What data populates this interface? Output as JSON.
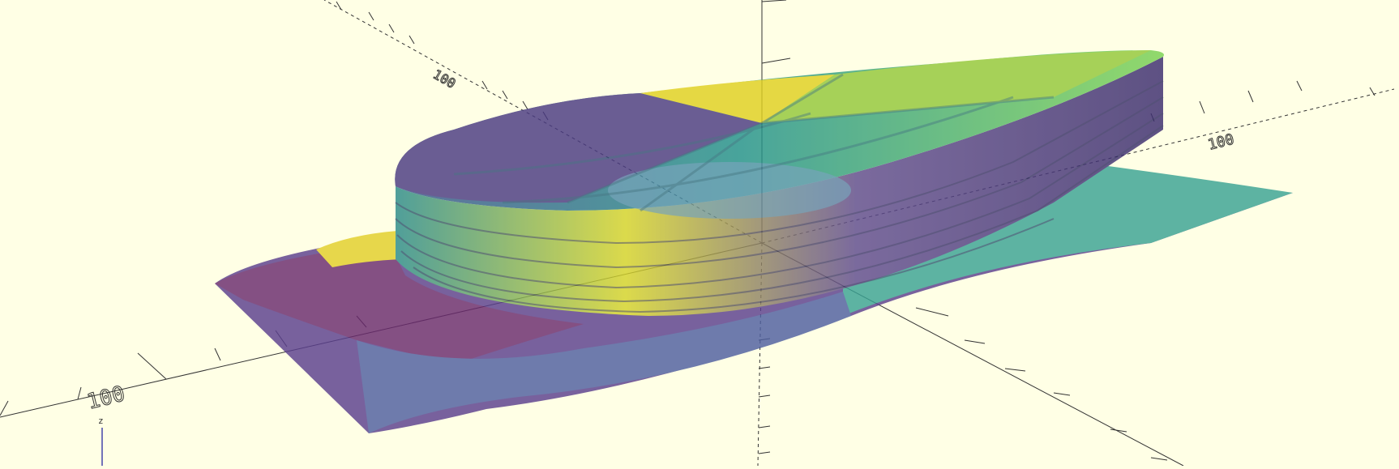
{
  "viewport": {
    "background": "#ffffe5",
    "axis_color": "#333333"
  },
  "axes": {
    "label_100_left": "100",
    "label_100_right": "100",
    "label_100_back": "100",
    "label_z": "z"
  },
  "model": {
    "colors": {
      "purple": "#440154",
      "indigo": "#3b528b",
      "teal": "#21918c",
      "green": "#5ec962",
      "yellow": "#e6d21a",
      "lime": "#a8d22a"
    },
    "opacity": 0.6
  }
}
